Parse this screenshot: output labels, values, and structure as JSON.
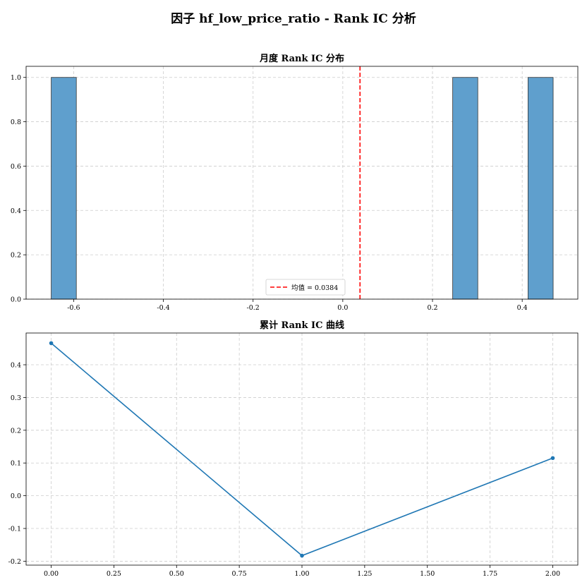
{
  "figure": {
    "title": "因子 hf_low_price_ratio - Rank IC 分析"
  },
  "chart_data": [
    {
      "type": "bar",
      "title": "月度 Rank IC 分布",
      "xlabel": "",
      "ylabel": "",
      "xlim": [
        -0.706,
        0.524
      ],
      "ylim": [
        0,
        1.05
      ],
      "xticks": [
        -0.6,
        -0.4,
        -0.2,
        0.0,
        0.2,
        0.4
      ],
      "xtick_labels": [
        "-0.6",
        "-0.4",
        "-0.2",
        "0.0",
        "0.2",
        "0.4"
      ],
      "yticks": [
        0.0,
        0.2,
        0.4,
        0.6,
        0.8,
        1.0
      ],
      "ytick_labels": [
        "0.0",
        "0.2",
        "0.4",
        "0.6",
        "0.8",
        "1.0"
      ],
      "bins": [
        {
          "x0": -0.65,
          "x1": -0.594,
          "value": 1
        },
        {
          "x0": 0.245,
          "x1": 0.301,
          "value": 1
        },
        {
          "x0": 0.413,
          "x1": 0.469,
          "value": 1
        }
      ],
      "mean_line": {
        "value": 0.0384,
        "label": "均值 = 0.0384",
        "color": "#ff0000"
      },
      "bar_color": "#5f9fcd",
      "grid": true,
      "legend_position": "bottom-center"
    },
    {
      "type": "line",
      "title": "累计 Rank IC 曲线",
      "xlabel": "",
      "ylabel": "",
      "xlim": [
        -0.1,
        2.1
      ],
      "ylim": [
        -0.212,
        0.497
      ],
      "x": [
        0,
        1,
        2
      ],
      "y": [
        0.466,
        -0.183,
        0.115
      ],
      "xticks": [
        0.0,
        0.25,
        0.5,
        0.75,
        1.0,
        1.25,
        1.5,
        1.75,
        2.0
      ],
      "xtick_labels": [
        "0.00",
        "0.25",
        "0.50",
        "0.75",
        "1.00",
        "1.25",
        "1.50",
        "1.75",
        "2.00"
      ],
      "yticks": [
        -0.2,
        -0.1,
        0.0,
        0.1,
        0.2,
        0.3,
        0.4
      ],
      "ytick_labels": [
        "-0.2",
        "-0.1",
        "0.0",
        "0.1",
        "0.2",
        "0.3",
        "0.4"
      ],
      "line_color": "#1f77b4",
      "marker": "circle",
      "grid": true
    }
  ]
}
